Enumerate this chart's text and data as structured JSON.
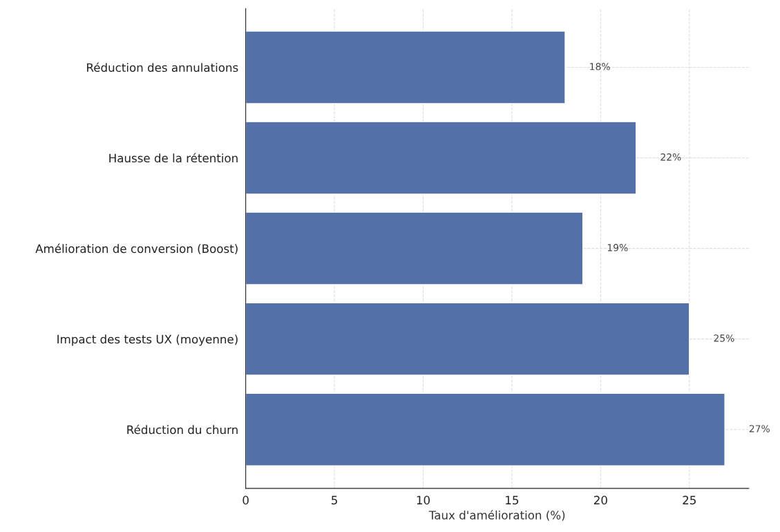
{
  "chart_data": {
    "type": "bar",
    "orientation": "horizontal",
    "xlabel": "Taux d'amélioration (%)",
    "categories": [
      "Réduction des annulations",
      "Hausse de la rétention",
      "Amélioration de conversion (Boost)",
      "Impact des tests UX (moyenne)",
      "Réduction du churn"
    ],
    "values": [
      18,
      22,
      19,
      25,
      27
    ],
    "color": "#5470a8",
    "value_labels": [
      "18%",
      "22%",
      "19%",
      "25%",
      "27%"
    ],
    "xlim": [
      0,
      28.35
    ],
    "xticks": [
      0,
      5,
      10,
      15,
      20,
      25
    ],
    "grid": true
  }
}
